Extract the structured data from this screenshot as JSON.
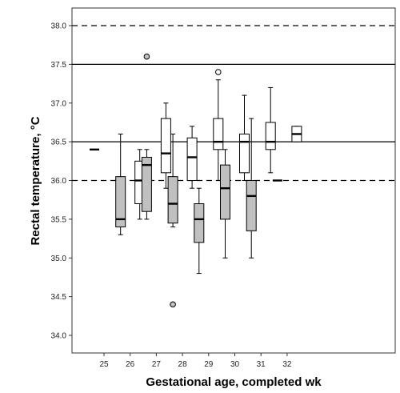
{
  "chart_data": {
    "type": "boxplot",
    "xlabel": "Gestational age, completed wk",
    "ylabel": "Rectal temperature, °C",
    "ylim": [
      33.85,
      38.3
    ],
    "yticks": [
      34.0,
      34.5,
      35.0,
      35.5,
      36.0,
      36.5,
      37.0,
      37.5,
      38.0
    ],
    "ytick_labels": [
      "34.0",
      "34.5",
      "35.0",
      "35.5",
      "36.0",
      "36.5",
      "37.0",
      "37.5",
      "38.0"
    ],
    "categories": [
      "25",
      "26",
      "27",
      "28",
      "29",
      "30",
      "31",
      "32"
    ],
    "reference_lines": [
      {
        "y": 38.0,
        "style": "dashed"
      },
      {
        "y": 37.5,
        "style": "solid"
      },
      {
        "y": 36.5,
        "style": "solid"
      },
      {
        "y": 36.0,
        "style": "dashed"
      }
    ],
    "groups": [
      {
        "name": "grey",
        "fill": "#c0c0c0"
      },
      {
        "name": "white",
        "fill": "#ffffff"
      }
    ],
    "boxes": [
      {
        "category": "25",
        "group": "grey",
        "whisker_low": 36.4,
        "q1": 36.4,
        "median": 36.4,
        "q3": 36.4,
        "whisker_high": 36.4,
        "outliers": []
      },
      {
        "category": "26",
        "group": "grey",
        "whisker_low": 35.3,
        "q1": 35.4,
        "median": 35.5,
        "q3": 36.05,
        "whisker_high": 36.6,
        "outliers": []
      },
      {
        "category": "26",
        "group": "white",
        "whisker_low": 35.5,
        "q1": 35.7,
        "median": 36.0,
        "q3": 36.25,
        "whisker_high": 36.4,
        "outliers": []
      },
      {
        "category": "27",
        "group": "grey",
        "whisker_low": 35.5,
        "q1": 35.6,
        "median": 36.2,
        "q3": 36.3,
        "whisker_high": 36.4,
        "outliers": [
          37.6
        ]
      },
      {
        "category": "27",
        "group": "white",
        "whisker_low": 35.9,
        "q1": 36.1,
        "median": 36.35,
        "q3": 36.8,
        "whisker_high": 37.0,
        "outliers": []
      },
      {
        "category": "28",
        "group": "grey",
        "whisker_low": 35.4,
        "q1": 35.45,
        "median": 35.7,
        "q3": 36.05,
        "whisker_high": 36.6,
        "outliers": [
          34.4
        ]
      },
      {
        "category": "28",
        "group": "white",
        "whisker_low": 35.9,
        "q1": 36.0,
        "median": 36.3,
        "q3": 36.55,
        "whisker_high": 36.7,
        "outliers": []
      },
      {
        "category": "29",
        "group": "grey",
        "whisker_low": 34.8,
        "q1": 35.2,
        "median": 35.5,
        "q3": 35.7,
        "whisker_high": 35.9,
        "outliers": []
      },
      {
        "category": "29",
        "group": "white",
        "whisker_low": 36.0,
        "q1": 36.4,
        "median": 36.5,
        "q3": 36.8,
        "whisker_high": 37.3,
        "outliers": [
          37.4
        ]
      },
      {
        "category": "30",
        "group": "grey",
        "whisker_low": 35.0,
        "q1": 35.5,
        "median": 35.9,
        "q3": 36.2,
        "whisker_high": 36.4,
        "outliers": []
      },
      {
        "category": "30",
        "group": "white",
        "whisker_low": 36.0,
        "q1": 36.1,
        "median": 36.5,
        "q3": 36.6,
        "whisker_high": 37.1,
        "outliers": []
      },
      {
        "category": "31",
        "group": "grey",
        "whisker_low": 35.0,
        "q1": 35.35,
        "median": 35.8,
        "q3": 36.0,
        "whisker_high": 36.8,
        "outliers": []
      },
      {
        "category": "31",
        "group": "white",
        "whisker_low": 36.1,
        "q1": 36.4,
        "median": 36.5,
        "q3": 36.75,
        "whisker_high": 37.2,
        "outliers": []
      },
      {
        "category": "32",
        "group": "grey",
        "whisker_low": 36.0,
        "q1": 36.0,
        "median": 36.0,
        "q3": 36.0,
        "whisker_high": 36.0,
        "outliers": []
      },
      {
        "category": "32",
        "group": "white",
        "whisker_low": 36.5,
        "q1": 36.5,
        "median": 36.6,
        "q3": 36.7,
        "whisker_high": 36.7,
        "outliers": []
      }
    ],
    "grid": false,
    "legend": "none"
  }
}
